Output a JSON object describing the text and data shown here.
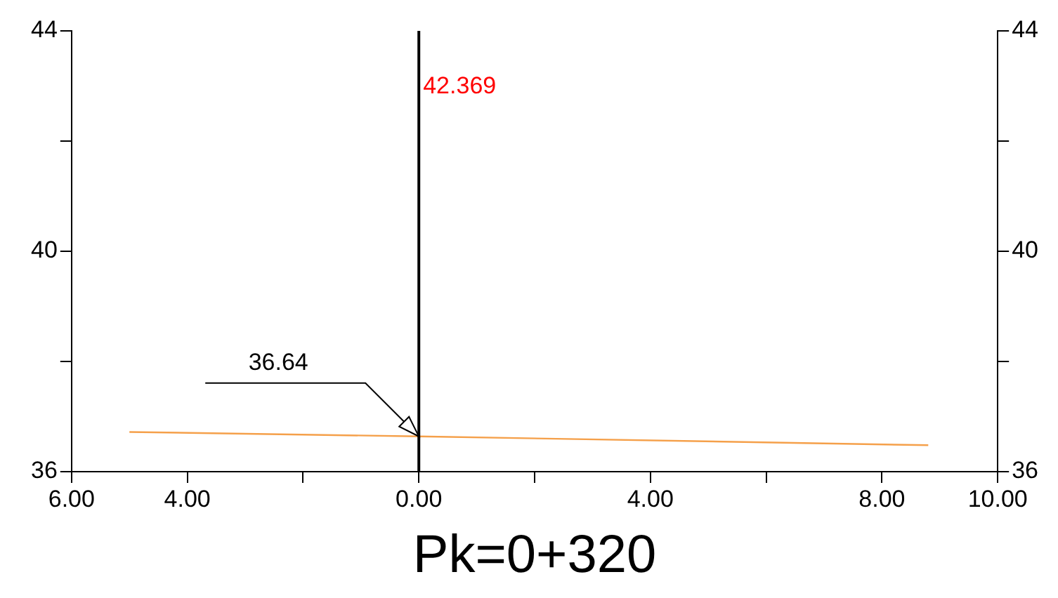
{
  "chart_data": {
    "type": "line",
    "title": "Pk=0+320",
    "series": [
      {
        "x": [
          -5,
          0,
          8.8
        ],
        "values": [
          36.72,
          36.64,
          36.48
        ],
        "color": "#f5a04a",
        "value_labels": [
          null,
          "36.64",
          null
        ]
      }
    ],
    "ref_lines": [
      {
        "axis": "x",
        "value": 0,
        "color": "#000000"
      }
    ],
    "annotations": [
      "42.369"
    ],
    "xlim": [
      -6,
      10
    ],
    "xticks": [
      {
        "value": -6,
        "label": "6.00"
      },
      {
        "value": -4,
        "label": "4.00"
      },
      {
        "value": -2,
        "label": null
      },
      {
        "value": 0,
        "label": "0.00"
      },
      {
        "value": 2,
        "label": null
      },
      {
        "value": 4,
        "label": "4.00"
      },
      {
        "value": 6,
        "label": null
      },
      {
        "value": 8,
        "label": "8.00"
      },
      {
        "value": 10,
        "label": "10.00"
      }
    ],
    "ylim": [
      36,
      44
    ],
    "yticks": [
      36,
      {
        "value": 38,
        "label": null
      },
      40,
      {
        "value": 42,
        "label": null
      },
      44
    ],
    "y2lim": [
      36,
      44
    ],
    "y2ticks": [
      36,
      {
        "value": 38,
        "label": null
      },
      40,
      {
        "value": 42,
        "label": null
      },
      44
    ],
    "grid": false,
    "legend": false,
    "marker": "none",
    "line_style": "solid"
  }
}
